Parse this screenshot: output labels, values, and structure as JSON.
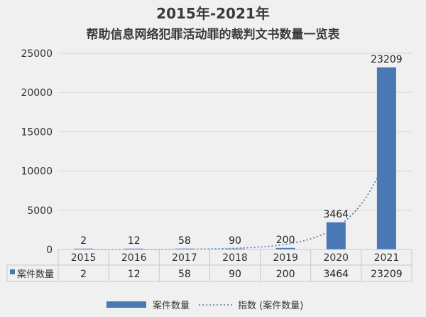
{
  "chart_data": {
    "type": "bar",
    "title": "2015年-2021年",
    "subtitle": "帮助信息网络犯罪活动罪的裁判文书数量一览表",
    "categories": [
      "2015",
      "2016",
      "2017",
      "2018",
      "2019",
      "2020",
      "2021"
    ],
    "series": [
      {
        "name": "案件数量",
        "values": [
          2,
          12,
          58,
          90,
          200,
          3464,
          23209
        ],
        "color": "#4a78b5"
      }
    ],
    "trendline": {
      "name": "指数 (案件数量)",
      "type": "exponential",
      "color": "#4a78b5"
    },
    "ylim": [
      0,
      25000
    ],
    "yticks": [
      0,
      5000,
      10000,
      15000,
      20000,
      25000
    ],
    "grid": true,
    "data_labels": true,
    "data_table": true,
    "legend": "bottom"
  }
}
